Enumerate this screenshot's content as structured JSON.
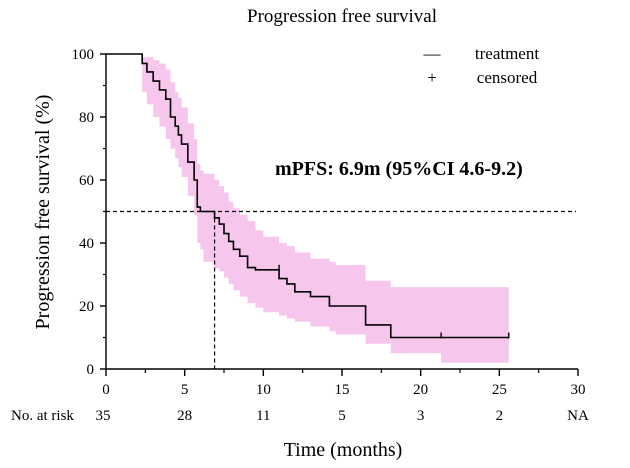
{
  "chart_data": {
    "type": "line",
    "subtype": "kaplan-meier",
    "title": "Progression free survival",
    "xlabel": "Time (months)",
    "ylabel": "Progression free survival (%)",
    "xlim": [
      0,
      30
    ],
    "ylim": [
      0,
      100
    ],
    "x_ticks": [
      0,
      5,
      10,
      15,
      20,
      25,
      30
    ],
    "y_ticks": [
      0,
      20,
      40,
      60,
      80,
      100
    ],
    "grid": false,
    "legend_position": "top-right",
    "legend": [
      {
        "symbol": "—",
        "label": "treatment"
      },
      {
        "symbol": "+",
        "label": "censored"
      }
    ],
    "annotation": "mPFS: 6.9m (95%CI 4.6-9.2)",
    "median_line_y": 50,
    "median_x": 6.9,
    "colors": {
      "curve": "#000000",
      "ci_band": "#f6c6ec"
    },
    "series": [
      {
        "name": "treatment",
        "x": [
          0,
          2.3,
          2.6,
          3.0,
          3.4,
          3.8,
          4.1,
          4.4,
          4.6,
          4.8,
          5.2,
          5.6,
          5.8,
          6.0,
          6.2,
          6.9,
          7.2,
          7.5,
          7.8,
          8.1,
          8.5,
          9.0,
          9.5,
          10.0,
          11.0,
          11.5,
          12.0,
          13.0,
          14.2,
          14.6,
          16.5,
          18.1,
          21.3,
          25.6
        ],
        "y": [
          100,
          97,
          94.3,
          91.4,
          88.6,
          85.7,
          80,
          77.1,
          74.3,
          71.4,
          65.7,
          60,
          51.4,
          50,
          50,
          48,
          46,
          43,
          40.5,
          38,
          35.8,
          32.2,
          31.5,
          31.5,
          28.7,
          27,
          24.5,
          23,
          20,
          20,
          14,
          10,
          10,
          10
        ],
        "ci_lower": [
          100,
          88,
          84,
          80,
          77,
          73,
          70,
          67,
          64,
          61,
          55,
          49,
          40,
          38,
          34,
          32,
          31,
          29,
          27,
          25,
          23,
          21,
          19.5,
          18,
          17,
          16,
          15,
          13.5,
          12,
          11,
          8,
          5,
          2,
          2
        ],
        "ci_upper": [
          100,
          99,
          99,
          98,
          97,
          95,
          91,
          88,
          86,
          83,
          78,
          73,
          65,
          63,
          62,
          60,
          58,
          56,
          53,
          51,
          49,
          47,
          44,
          42,
          40,
          39,
          37,
          35,
          34,
          33,
          28,
          26,
          26,
          26
        ],
        "censored": [
          {
            "x": 11.0,
            "y": 31.5
          },
          {
            "x": 21.3,
            "y": 10
          },
          {
            "x": 25.6,
            "y": 10
          }
        ]
      }
    ],
    "risk_table": {
      "label": "No. at risk",
      "times": [
        0,
        5,
        10,
        15,
        20,
        25,
        30
      ],
      "counts": [
        "35",
        "28",
        "11",
        "5",
        "3",
        "2",
        "NA"
      ]
    }
  }
}
